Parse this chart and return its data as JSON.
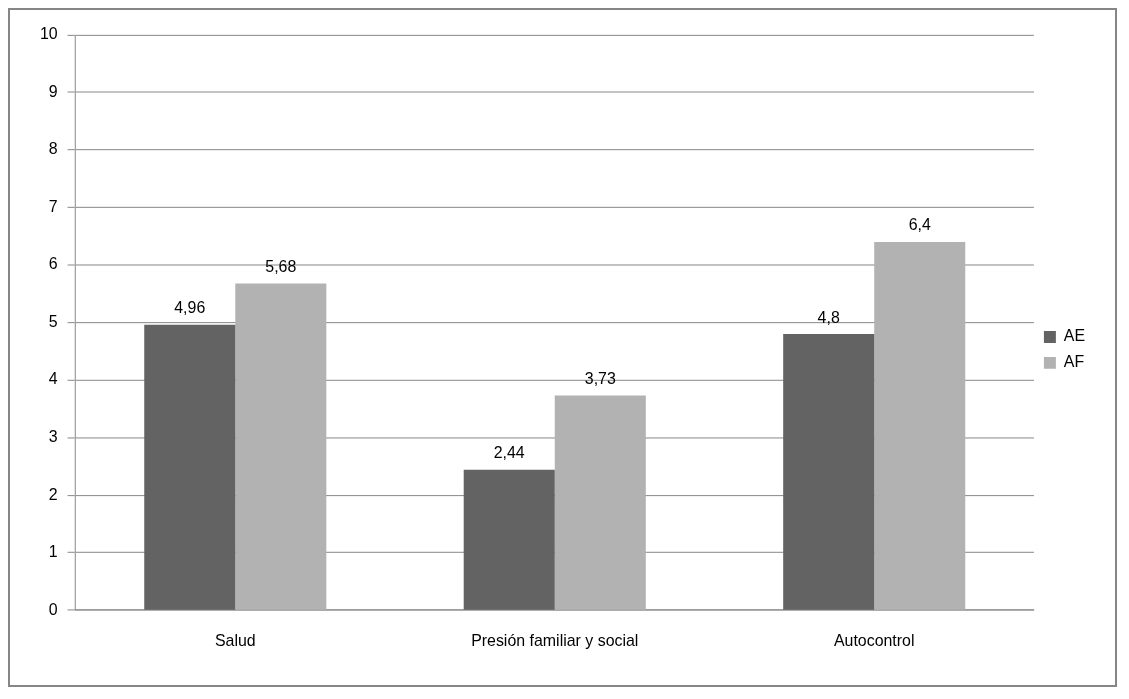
{
  "chart_data": {
    "type": "bar",
    "categories": [
      "Salud",
      "Presión familiar y social",
      "Autocontrol"
    ],
    "series": [
      {
        "name": "AE",
        "color": "#636363",
        "values": [
          4.96,
          2.44,
          4.8
        ],
        "value_labels": [
          "4,96",
          "2,44",
          "4,8"
        ]
      },
      {
        "name": "AF",
        "color": "#b2b2b2",
        "values": [
          5.68,
          3.73,
          6.4
        ],
        "value_labels": [
          "5,68",
          "3,73",
          "6,4"
        ]
      }
    ],
    "ylim": [
      0,
      10
    ],
    "yticks": [
      0,
      1,
      2,
      3,
      4,
      5,
      6,
      7,
      8,
      9,
      10
    ],
    "grid": "y",
    "legend": "right"
  }
}
